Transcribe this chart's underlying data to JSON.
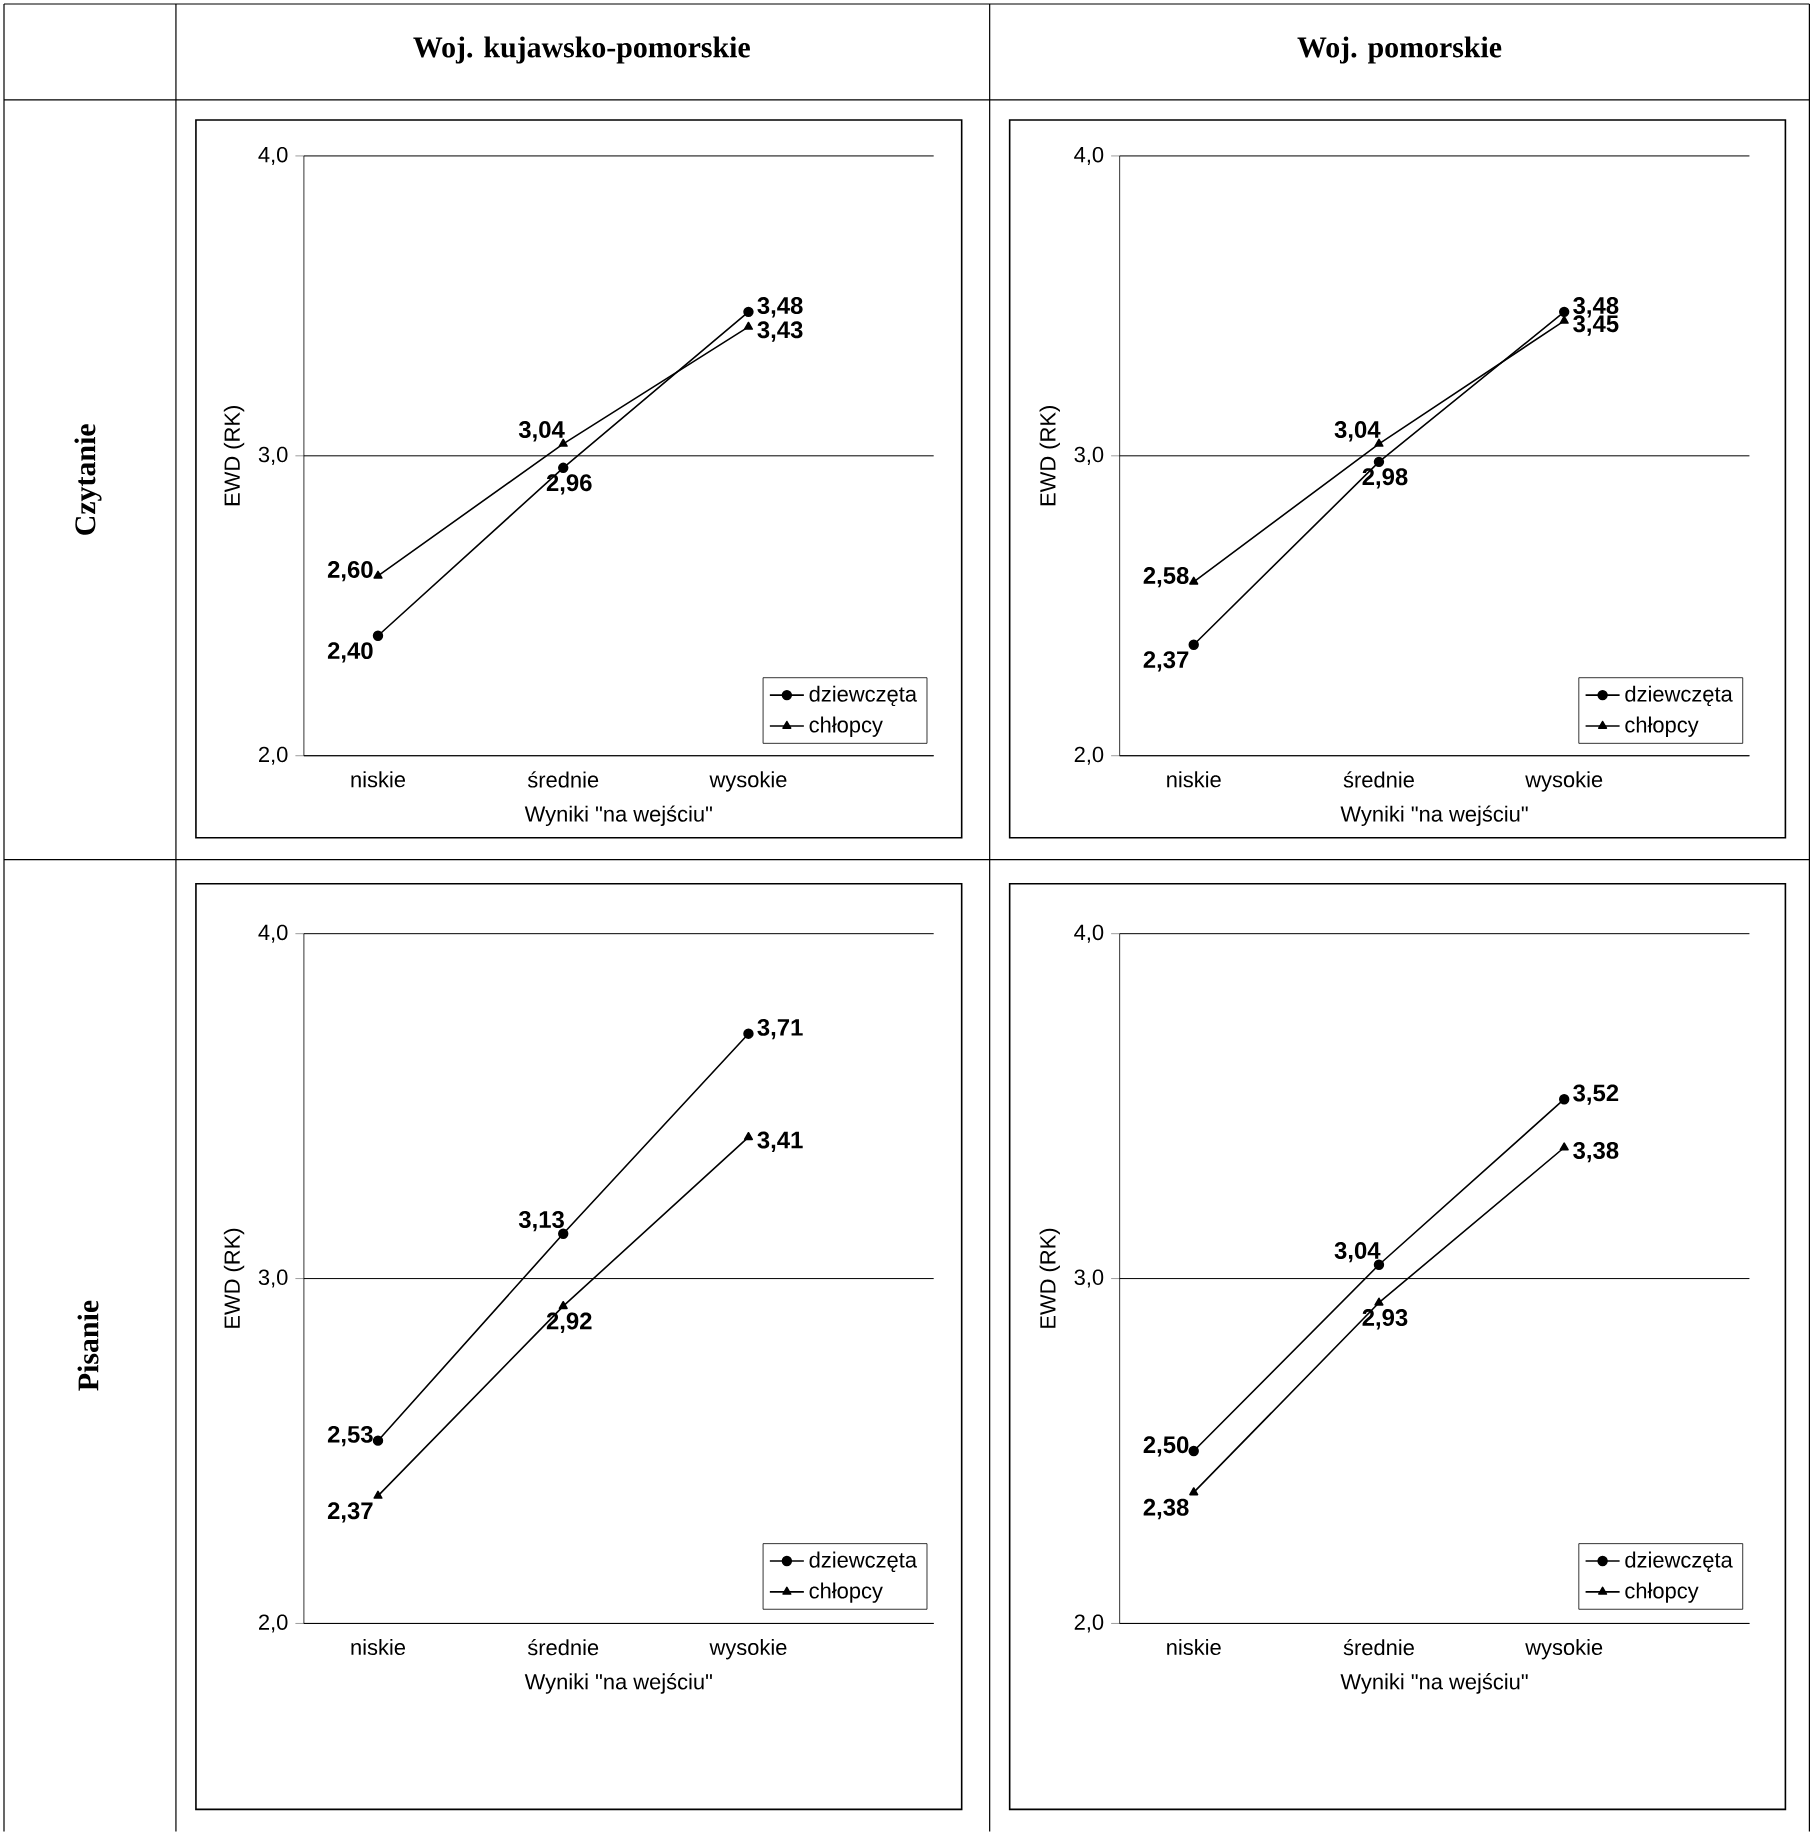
{
  "chart_data": [
    {
      "type": "other",
      "annotations": [
        "Woj. kujawsko-pomorskie",
        "Woj. pomorskie",
        "Czytanie",
        "Pisanie"
      ]
    },
    {
      "type": "line",
      "categories": [
        "niskie",
        "średnie",
        "wysokie"
      ],
      "xlabel": "Wyniki \"na wejściu\"",
      "ylabel": "EWD (RK)",
      "ylim": [
        2,
        4
      ],
      "yticks": [
        {
          "value": 2,
          "label": "2,0"
        },
        {
          "value": 3,
          "label": "3,0"
        },
        {
          "value": 4,
          "label": "4,0"
        }
      ],
      "grid": "y",
      "legend": "bottom right",
      "series": [
        {
          "name": "dziewczęta",
          "color": "#000000",
          "marker": "circle",
          "values": [
            2.4,
            2.96,
            3.48
          ],
          "value_labels": [
            "2,40",
            "2,96",
            "3,48"
          ]
        },
        {
          "name": "chłopcy",
          "color": "#000000",
          "marker": "triangle",
          "values": [
            2.6,
            3.04,
            3.43
          ],
          "value_labels": [
            "2,60",
            "3,04",
            "3,43"
          ]
        }
      ]
    },
    {
      "type": "line",
      "categories": [
        "niskie",
        "średnie",
        "wysokie"
      ],
      "xlabel": "Wyniki \"na wejściu\"",
      "ylabel": "EWD (RK)",
      "ylim": [
        2,
        4
      ],
      "yticks": [
        {
          "value": 2,
          "label": "2,0"
        },
        {
          "value": 3,
          "label": "3,0"
        },
        {
          "value": 4,
          "label": "4,0"
        }
      ],
      "grid": "y",
      "legend": "bottom right",
      "series": [
        {
          "name": "dziewczęta",
          "color": "#000000",
          "marker": "circle",
          "values": [
            2.37,
            2.98,
            3.48
          ],
          "value_labels": [
            "2,37",
            "2,98",
            "3,48"
          ]
        },
        {
          "name": "chłopcy",
          "color": "#000000",
          "marker": "triangle",
          "values": [
            2.58,
            3.04,
            3.45
          ],
          "value_labels": [
            "2,58",
            "3,04",
            "3,45"
          ]
        }
      ]
    },
    {
      "type": "line",
      "categories": [
        "niskie",
        "średnie",
        "wysokie"
      ],
      "xlabel": "Wyniki \"na wejściu\"",
      "ylabel": "EWD (RK)",
      "ylim": [
        2,
        4
      ],
      "yticks": [
        {
          "value": 2,
          "label": "2,0"
        },
        {
          "value": 3,
          "label": "3,0"
        },
        {
          "value": 4,
          "label": "4,0"
        }
      ],
      "grid": "y",
      "legend": "bottom right",
      "series": [
        {
          "name": "dziewczęta",
          "color": "#000000",
          "marker": "circle",
          "values": [
            2.53,
            3.13,
            3.71
          ],
          "value_labels": [
            "2,53",
            "3,13",
            "3,71"
          ]
        },
        {
          "name": "chłopcy",
          "color": "#000000",
          "marker": "triangle",
          "values": [
            2.37,
            2.92,
            3.41
          ],
          "value_labels": [
            "2,37",
            "2,92",
            "3,41"
          ]
        }
      ]
    },
    {
      "type": "line",
      "categories": [
        "niskie",
        "średnie",
        "wysokie"
      ],
      "xlabel": "Wyniki \"na wejściu\"",
      "ylabel": "EWD (RK)",
      "ylim": [
        2,
        4
      ],
      "yticks": [
        {
          "value": 2,
          "label": "2,0"
        },
        {
          "value": 3,
          "label": "3,0"
        },
        {
          "value": 4,
          "label": "4,0"
        }
      ],
      "grid": "y",
      "legend": "bottom right",
      "series": [
        {
          "name": "dziewczęta",
          "color": "#000000",
          "marker": "circle",
          "values": [
            2.5,
            3.04,
            3.52
          ],
          "value_labels": [
            "2,50",
            "3,04",
            "3,52"
          ]
        },
        {
          "name": "chłopcy",
          "color": "#000000",
          "marker": "triangle",
          "values": [
            2.38,
            2.93,
            3.38
          ],
          "value_labels": [
            "2,38",
            "2,93",
            "3,38"
          ]
        }
      ]
    }
  ]
}
